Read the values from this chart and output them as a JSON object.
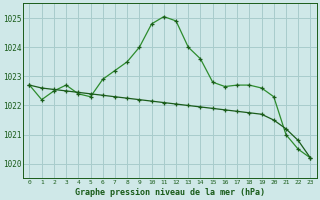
{
  "title": "Graphe pression niveau de la mer (hPa)",
  "bg_color": "#cfe8e8",
  "grid_color": "#a8cccc",
  "line_color_dark": "#1a5c1a",
  "line_color_mid": "#2d8c2d",
  "xlim": [
    -0.5,
    23.5
  ],
  "ylim": [
    1019.5,
    1025.5
  ],
  "yticks": [
    1020,
    1021,
    1022,
    1023,
    1024,
    1025
  ],
  "ytick_labels": [
    "1020",
    "1021",
    "1022",
    "1023",
    "1024",
    "1025"
  ],
  "xticks": [
    0,
    1,
    2,
    3,
    4,
    5,
    6,
    7,
    8,
    9,
    10,
    11,
    12,
    13,
    14,
    15,
    16,
    17,
    18,
    19,
    20,
    21,
    22,
    23
  ],
  "series1": [
    1022.7,
    1022.2,
    1022.5,
    1022.7,
    1022.4,
    1022.3,
    1022.9,
    1023.2,
    1023.5,
    1024.0,
    1024.8,
    1025.05,
    1024.9,
    1024.0,
    1023.6,
    1022.8,
    1022.65,
    1022.7,
    1022.7,
    1022.6,
    1022.3,
    1021.0,
    1020.5,
    1020.2
  ],
  "series2": [
    1022.7,
    1022.6,
    1022.55,
    1022.5,
    1022.45,
    1022.4,
    1022.35,
    1022.3,
    1022.25,
    1022.2,
    1022.15,
    1022.1,
    1022.05,
    1022.0,
    1021.95,
    1021.9,
    1021.85,
    1021.8,
    1021.75,
    1021.7,
    1021.5,
    1021.2,
    1020.8,
    1020.2
  ],
  "ylabel_fontsize": 5.5,
  "xlabel_fontsize": 4.5,
  "title_fontsize": 6.0
}
